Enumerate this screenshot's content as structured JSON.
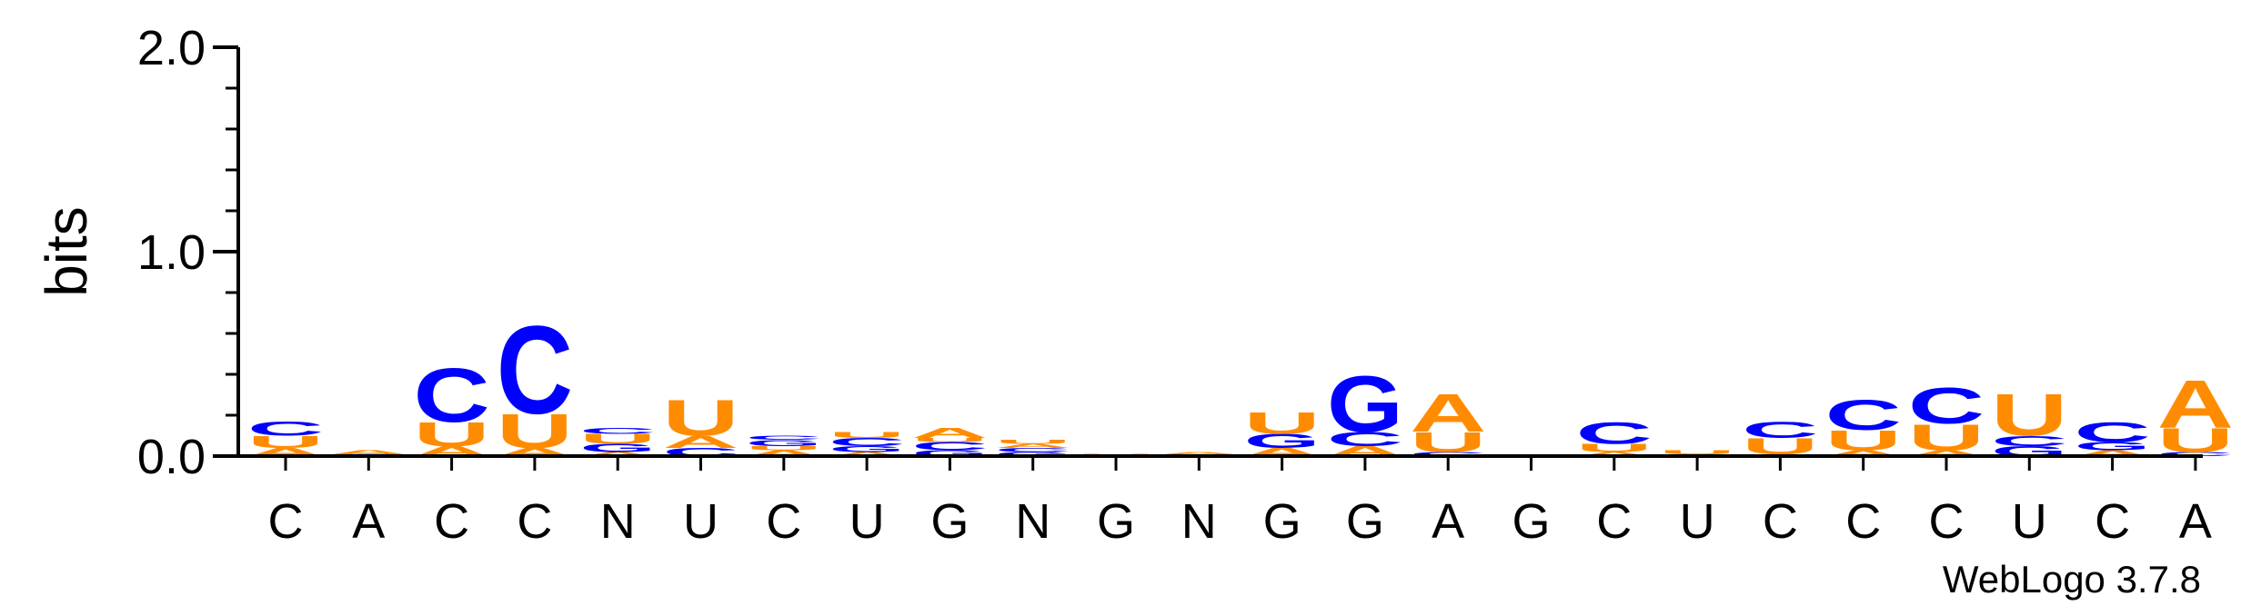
{
  "chart_data": {
    "type": "sequence-logo",
    "ylabel": "bits",
    "ylim": [
      0,
      2.0
    ],
    "yticks": [
      "0.0",
      "1.0",
      "2.0"
    ],
    "consensus": [
      "C",
      "A",
      "C",
      "C",
      "N",
      "U",
      "C",
      "U",
      "G",
      "N",
      "G",
      "N",
      "G",
      "G",
      "A",
      "G",
      "C",
      "U",
      "C",
      "C",
      "C",
      "U",
      "C",
      "A"
    ],
    "colors": {
      "A": "#ff8c00",
      "U": "#ff8c00",
      "C": "#0000ff",
      "G": "#0000ff"
    },
    "stacks": [
      [
        [
          "A",
          0.04
        ],
        [
          "U",
          0.06
        ],
        [
          "C",
          0.07
        ]
      ],
      [
        [
          "C",
          0.01
        ],
        [
          "A",
          0.02
        ]
      ],
      [
        [
          "A",
          0.05
        ],
        [
          "U",
          0.12
        ],
        [
          "C",
          0.27
        ]
      ],
      [
        [
          "A",
          0.04
        ],
        [
          "U",
          0.17
        ],
        [
          "C",
          0.44
        ]
      ],
      [
        [
          "A",
          0.02
        ],
        [
          "G",
          0.04
        ],
        [
          "U",
          0.05
        ],
        [
          "C",
          0.03
        ]
      ],
      [
        [
          "C",
          0.04
        ],
        [
          "A",
          0.06
        ],
        [
          "U",
          0.18
        ]
      ],
      [
        [
          "A",
          0.03
        ],
        [
          "U",
          0.02
        ],
        [
          "G",
          0.03
        ],
        [
          "C",
          0.02
        ]
      ],
      [
        [
          "A",
          0.02
        ],
        [
          "G",
          0.03
        ],
        [
          "C",
          0.04
        ],
        [
          "U",
          0.03
        ]
      ],
      [
        [
          "G",
          0.03
        ],
        [
          "C",
          0.04
        ],
        [
          "U",
          0.02
        ],
        [
          "A",
          0.05
        ]
      ],
      [
        [
          "G",
          0.02
        ],
        [
          "C",
          0.02
        ],
        [
          "A",
          0.02
        ],
        [
          "U",
          0.02
        ]
      ],
      [
        [
          "A",
          0.005
        ],
        [
          "U",
          0.005
        ]
      ],
      [
        [
          "U",
          0.01
        ],
        [
          "A",
          0.01
        ]
      ],
      [
        [
          "A",
          0.04
        ],
        [
          "G",
          0.07
        ],
        [
          "U",
          0.11
        ]
      ],
      [
        [
          "A",
          0.05
        ],
        [
          "C",
          0.07
        ],
        [
          "G",
          0.28
        ]
      ],
      [
        [
          "C",
          0.02
        ],
        [
          "U",
          0.1
        ],
        [
          "A",
          0.19
        ]
      ],
      [
        [
          "G",
          0.01
        ]
      ],
      [
        [
          "A",
          0.02
        ],
        [
          "U",
          0.04
        ],
        [
          "C",
          0.11
        ]
      ],
      [
        [
          "A",
          0.01
        ],
        [
          "U",
          0.02
        ]
      ],
      [
        [
          "A",
          0.01
        ],
        [
          "U",
          0.08
        ],
        [
          "C",
          0.08
        ]
      ],
      [
        [
          "A",
          0.03
        ],
        [
          "U",
          0.1
        ],
        [
          "C",
          0.15
        ]
      ],
      [
        [
          "A",
          0.03
        ],
        [
          "U",
          0.13
        ],
        [
          "C",
          0.18
        ]
      ],
      [
        [
          "G",
          0.05
        ],
        [
          "C",
          0.05
        ],
        [
          "U",
          0.21
        ]
      ],
      [
        [
          "A",
          0.03
        ],
        [
          "G",
          0.04
        ],
        [
          "C",
          0.1
        ]
      ],
      [
        [
          "C",
          0.02
        ],
        [
          "U",
          0.12
        ],
        [
          "A",
          0.24
        ]
      ]
    ]
  },
  "credit": "WebLogo 3.7.8"
}
